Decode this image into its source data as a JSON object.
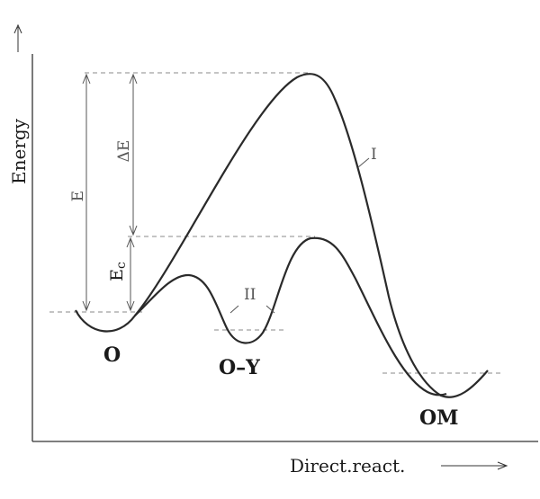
{
  "axes": {
    "y_label": "Energy",
    "x_label": "Direct.react."
  },
  "energy_labels": {
    "total": "E",
    "delta": "ΔE",
    "catalyzed": "Ec"
  },
  "curves": {
    "uncatalyzed": "I",
    "catalyzed": "II"
  },
  "states": {
    "initial": "O",
    "intermediate": "O–Y",
    "final": "OM"
  },
  "colors": {
    "curve": "#2a2a2a",
    "axis": "#333333",
    "guide": "#888888"
  }
}
